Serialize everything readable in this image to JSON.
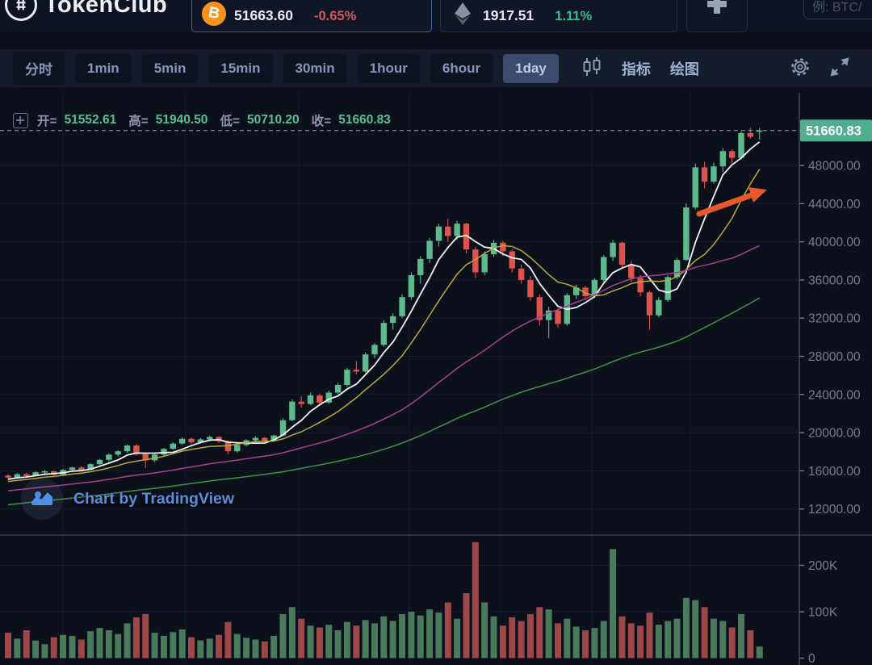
{
  "header": {
    "logo_text": "TokenClub",
    "watchlist": [
      {
        "name": "btc",
        "icon_glyph": "B",
        "price": "51663.60",
        "change": "-0.65%",
        "direction": "down",
        "selected": true
      },
      {
        "name": "eth",
        "price": "1917.51",
        "change": "1.11%",
        "direction": "up",
        "selected": false
      }
    ],
    "search_placeholder": "例: BTC/"
  },
  "toolbar": {
    "intervals": [
      "分时",
      "1min",
      "5min",
      "15min",
      "30min",
      "1hour",
      "6hour",
      "1day"
    ],
    "active_interval": "1day",
    "indicators_label": "指标",
    "drawing_label": "绘图"
  },
  "legend": {
    "open_label": "开=",
    "open": "51552.61",
    "high_label": "高=",
    "high": "51940.50",
    "low_label": "低=",
    "low": "50710.20",
    "close_label": "收=",
    "close": "51660.83"
  },
  "price_axis": {
    "last_price_label": "51660.83",
    "tick_labels": [
      "48000.00",
      "44000.00",
      "40000.00",
      "36000.00",
      "32000.00",
      "28000.00",
      "24000.00",
      "20000.00",
      "16000.00",
      "12000.00"
    ]
  },
  "volume_axis": {
    "tick_labels": [
      "200K",
      "100K",
      "0"
    ]
  },
  "watermark": "Chart by TradingView",
  "colors": {
    "up": "#5cba8c",
    "down": "#e0534d",
    "volume_up": "#4a7a5c",
    "volume_down": "#9e4749",
    "last_price_badge": "#4fae8d",
    "dashed_line": "#4db286",
    "arrow": "#e8582a",
    "axis_text": "#747d92",
    "axis_line": "#4a5468",
    "grid": "#161e2c",
    "divider": "#3a4354"
  },
  "chart_data": {
    "type": "candlestick",
    "interval": "1day",
    "ohlc_legend": {
      "open": 51552.61,
      "high": 51940.5,
      "low": 50710.2,
      "close": 51660.83
    },
    "last_price": 51660.83,
    "price_axis_ticks": [
      48000,
      44000,
      40000,
      36000,
      32000,
      28000,
      24000,
      20000,
      16000,
      12000
    ],
    "volume_axis_ticks": [
      200000,
      100000,
      0
    ],
    "price_range_visible": [
      9500,
      55600
    ],
    "grid": true,
    "ma_overlays": [
      {
        "period": 5,
        "color": "#f2f2f2"
      },
      {
        "period": 10,
        "color": "#b9a93c"
      },
      {
        "period": 30,
        "color": "#a83f93"
      },
      {
        "period": 60,
        "color": "#3f9349"
      }
    ],
    "annotations": [
      {
        "type": "arrow",
        "description": "orange upward trend arrow",
        "color": "#e8582a"
      }
    ],
    "candles": [
      [
        15500,
        15650,
        15050,
        15300,
        55000
      ],
      [
        15300,
        15750,
        15200,
        15650,
        42000
      ],
      [
        15650,
        15800,
        15350,
        15450,
        60000
      ],
      [
        15450,
        15950,
        15400,
        15850,
        38000
      ],
      [
        15850,
        16100,
        15650,
        15950,
        30000
      ],
      [
        15950,
        16000,
        15500,
        15600,
        45000
      ],
      [
        15600,
        16200,
        15550,
        16100,
        50000
      ],
      [
        16100,
        16450,
        15900,
        16350,
        48000
      ],
      [
        16350,
        16500,
        15950,
        16100,
        40000
      ],
      [
        16100,
        16800,
        16050,
        16700,
        58000
      ],
      [
        16700,
        17250,
        16600,
        17150,
        65000
      ],
      [
        17150,
        17800,
        17000,
        17700,
        60000
      ],
      [
        17700,
        18150,
        17500,
        18050,
        52000
      ],
      [
        18050,
        18750,
        17900,
        18650,
        75000
      ],
      [
        18650,
        18800,
        17600,
        17750,
        88000
      ],
      [
        17750,
        17900,
        16300,
        17100,
        95000
      ],
      [
        17100,
        17800,
        16900,
        17700,
        55000
      ],
      [
        17700,
        18400,
        17550,
        18300,
        48000
      ],
      [
        18300,
        19000,
        18200,
        18850,
        56000
      ],
      [
        18850,
        19500,
        18700,
        19350,
        62000
      ],
      [
        19350,
        19500,
        18800,
        19000,
        45000
      ],
      [
        19000,
        19450,
        18850,
        19300,
        38000
      ],
      [
        19300,
        19700,
        19100,
        19550,
        42000
      ],
      [
        19550,
        19650,
        18900,
        19100,
        50000
      ],
      [
        19100,
        19200,
        17750,
        18050,
        78000
      ],
      [
        18050,
        18850,
        17900,
        18700,
        52000
      ],
      [
        18700,
        19300,
        18550,
        19200,
        44000
      ],
      [
        19200,
        19600,
        19000,
        19450,
        40000
      ],
      [
        19450,
        19550,
        18950,
        19150,
        36000
      ],
      [
        19150,
        19800,
        19050,
        19700,
        48000
      ],
      [
        19700,
        21500,
        19600,
        21300,
        95000
      ],
      [
        21300,
        23500,
        21200,
        23250,
        110000
      ],
      [
        23250,
        23800,
        22600,
        23000,
        85000
      ],
      [
        23000,
        24200,
        22900,
        23900,
        70000
      ],
      [
        23900,
        24100,
        22800,
        23150,
        66000
      ],
      [
        23150,
        24400,
        23000,
        24200,
        72000
      ],
      [
        24200,
        25200,
        24000,
        25000,
        60000
      ],
      [
        25000,
        26800,
        24800,
        26600,
        78000
      ],
      [
        26600,
        27500,
        26100,
        26400,
        70000
      ],
      [
        26400,
        28400,
        26300,
        28200,
        82000
      ],
      [
        28200,
        29400,
        27800,
        29200,
        75000
      ],
      [
        29200,
        31800,
        29000,
        31500,
        90000
      ],
      [
        31500,
        32500,
        30800,
        32200,
        80000
      ],
      [
        32200,
        34500,
        32000,
        34200,
        95000
      ],
      [
        34200,
        36800,
        33900,
        36500,
        100000
      ],
      [
        36500,
        38500,
        35600,
        38200,
        92000
      ],
      [
        38200,
        40400,
        37800,
        40100,
        105000
      ],
      [
        40100,
        41900,
        39500,
        41600,
        98000
      ],
      [
        41600,
        42400,
        40000,
        40600,
        120000
      ],
      [
        40600,
        42200,
        40200,
        41900,
        85000
      ],
      [
        41900,
        42000,
        38800,
        39200,
        140000
      ],
      [
        39200,
        39500,
        36200,
        36800,
        250000
      ],
      [
        36800,
        39000,
        36500,
        38700,
        120000
      ],
      [
        38700,
        40200,
        38400,
        39900,
        90000
      ],
      [
        39900,
        40100,
        38500,
        39000,
        70000
      ],
      [
        39000,
        39200,
        36800,
        37200,
        88000
      ],
      [
        37200,
        37600,
        35600,
        36000,
        80000
      ],
      [
        36000,
        36400,
        33800,
        34200,
        95000
      ],
      [
        34200,
        34500,
        31200,
        31800,
        110000
      ],
      [
        31800,
        33200,
        29900,
        32800,
        105000
      ],
      [
        32800,
        33000,
        31000,
        31400,
        75000
      ],
      [
        31400,
        34600,
        31200,
        34400,
        85000
      ],
      [
        34400,
        35500,
        34000,
        35200,
        68000
      ],
      [
        35200,
        35400,
        33900,
        34300,
        60000
      ],
      [
        34300,
        36200,
        34100,
        36000,
        65000
      ],
      [
        36000,
        38600,
        35800,
        38400,
        80000
      ],
      [
        38400,
        40200,
        38000,
        39900,
        235000
      ],
      [
        39900,
        40000,
        37200,
        37600,
        90000
      ],
      [
        37600,
        38000,
        35800,
        36200,
        75000
      ],
      [
        36200,
        36500,
        34300,
        34700,
        70000
      ],
      [
        34700,
        34900,
        30800,
        32300,
        98000
      ],
      [
        32300,
        34200,
        32100,
        33900,
        72000
      ],
      [
        33900,
        36500,
        33700,
        36300,
        80000
      ],
      [
        36300,
        38300,
        36100,
        38100,
        85000
      ],
      [
        38100,
        44000,
        38000,
        43600,
        130000
      ],
      [
        43600,
        48200,
        43400,
        47800,
        125000
      ],
      [
        47800,
        48400,
        45600,
        46300,
        110000
      ],
      [
        46300,
        48300,
        46100,
        47900,
        85000
      ],
      [
        47900,
        49800,
        47300,
        49500,
        80000
      ],
      [
        49500,
        49700,
        48200,
        48800,
        66000
      ],
      [
        48800,
        51600,
        48600,
        51400,
        95000
      ],
      [
        51400,
        51940,
        50800,
        51000,
        60000
      ],
      [
        51552.61,
        51940.5,
        50710.2,
        51660.83,
        25000
      ]
    ]
  }
}
